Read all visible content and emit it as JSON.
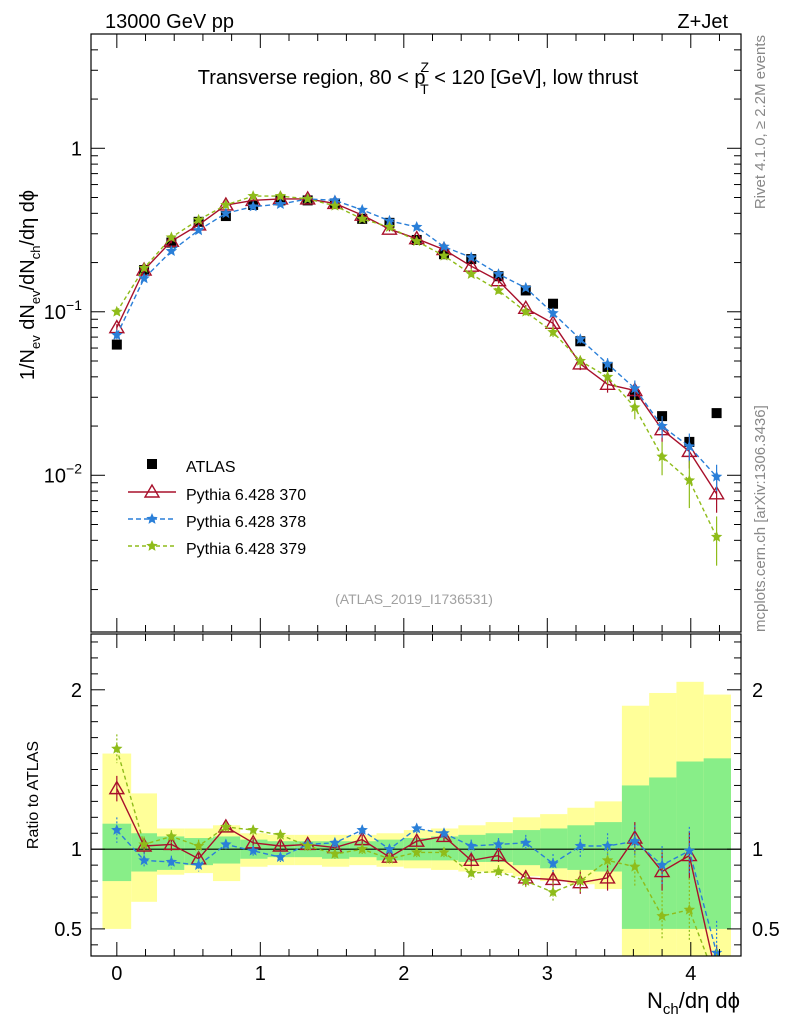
{
  "header": {
    "energy_label": "13000 GeV pp",
    "process_label": "Z+Jet",
    "side_rivet": "Rivet 4.1.0, ≥ 2.2M events",
    "side_mcplots": "mcplots.cern.ch [arXiv:1306.3436]"
  },
  "chart_data": [
    {
      "type": "scatter",
      "title": "Transverse region, 80 < p",
      "title_sup": "Z",
      "title_sub": "T",
      "title_tail": " < 120 [GeV], low thrust",
      "watermark": "(ATLAS_2019_I1736531)",
      "ylabel": {
        "a": "1/N",
        "b": "ev",
        "c": " dN",
        "d": "ev",
        "e": "/dN",
        "f": "ch",
        "g": "/dη dϕ"
      },
      "yscale": "log",
      "ylim": [
        0.0011,
        5.0
      ],
      "xlim": [
        -0.18,
        4.35
      ],
      "yticks": [
        {
          "v": 1,
          "b": "1",
          "e": ""
        },
        {
          "v": 0.1,
          "b": "10",
          "e": "−1"
        },
        {
          "v": 0.01,
          "b": "10",
          "e": "−2"
        }
      ],
      "x": [
        0.0,
        0.19,
        0.38,
        0.57,
        0.76,
        0.95,
        1.14,
        1.33,
        1.52,
        1.71,
        1.9,
        2.09,
        2.28,
        2.47,
        2.66,
        2.85,
        3.04,
        3.23,
        3.42,
        3.61,
        3.8,
        3.99,
        4.18
      ],
      "series": [
        {
          "name": "ATLAS",
          "color": "#000000",
          "marker": "square",
          "values": [
            0.063,
            0.18,
            0.265,
            0.355,
            0.385,
            0.45,
            0.48,
            0.48,
            0.46,
            0.37,
            0.35,
            0.275,
            0.225,
            0.21,
            0.165,
            0.135,
            0.112,
            0.066,
            0.046,
            0.031,
            0.023,
            0.016,
            0.024
          ]
        },
        {
          "name": "Pythia 6.428 370",
          "color": "#a8102b",
          "marker": "triangle",
          "dash": "",
          "values": [
            0.08,
            0.18,
            0.27,
            0.34,
            0.45,
            0.48,
            0.49,
            0.49,
            0.46,
            0.39,
            0.32,
            0.28,
            0.24,
            0.19,
            0.155,
            0.105,
            0.085,
            0.048,
            0.036,
            0.033,
            0.019,
            0.014,
            0.0077
          ],
          "err": [
            0.004,
            0.006,
            0.008,
            0.01,
            0.012,
            0.012,
            0.012,
            0.012,
            0.012,
            0.01,
            0.01,
            0.008,
            0.008,
            0.007,
            0.006,
            0.005,
            0.005,
            0.004,
            0.004,
            0.004,
            0.003,
            0.003,
            0.0018
          ]
        },
        {
          "name": "Pythia 6.428 378",
          "color": "#2a7fd8",
          "marker": "star",
          "dash": "5,3",
          "values": [
            0.072,
            0.16,
            0.235,
            0.315,
            0.4,
            0.44,
            0.455,
            0.49,
            0.48,
            0.42,
            0.36,
            0.33,
            0.25,
            0.215,
            0.17,
            0.14,
            0.098,
            0.068,
            0.048,
            0.034,
            0.02,
            0.015,
            0.0098
          ],
          "err": [
            0.004,
            0.006,
            0.008,
            0.01,
            0.012,
            0.012,
            0.012,
            0.012,
            0.012,
            0.01,
            0.01,
            0.008,
            0.008,
            0.007,
            0.006,
            0.005,
            0.005,
            0.004,
            0.004,
            0.004,
            0.003,
            0.003,
            0.0018
          ]
        },
        {
          "name": "Pythia 6.428 379",
          "color": "#8fbc1a",
          "marker": "star",
          "dash": "4,3",
          "values": [
            0.1,
            0.185,
            0.285,
            0.365,
            0.45,
            0.51,
            0.51,
            0.49,
            0.445,
            0.37,
            0.33,
            0.27,
            0.22,
            0.17,
            0.135,
            0.1,
            0.075,
            0.05,
            0.04,
            0.026,
            0.013,
            0.0093,
            0.0042
          ],
          "err": [
            0.004,
            0.006,
            0.008,
            0.01,
            0.012,
            0.012,
            0.012,
            0.012,
            0.012,
            0.01,
            0.01,
            0.008,
            0.008,
            0.007,
            0.006,
            0.005,
            0.005,
            0.004,
            0.004,
            0.004,
            0.003,
            0.003,
            0.0014
          ]
        }
      ]
    },
    {
      "type": "line",
      "ylabel": "Ratio to ATLAS",
      "xlabel": {
        "a": "N",
        "b": "ch",
        "c": "/dη dϕ"
      },
      "ylim": [
        0.33,
        2.35
      ],
      "xlim": [
        -0.18,
        4.35
      ],
      "xticks": [
        0,
        1,
        2,
        3,
        4
      ],
      "yticks": [
        0.5,
        1,
        2
      ],
      "reference": 1,
      "bin_edges": [
        -0.1,
        0.1,
        0.28,
        0.47,
        0.67,
        0.86,
        1.05,
        1.24,
        1.43,
        1.62,
        1.81,
        2.0,
        2.19,
        2.38,
        2.57,
        2.76,
        2.95,
        3.14,
        3.33,
        3.52,
        3.71,
        3.9,
        4.09,
        4.28
      ],
      "band_inner": [
        [
          0.8,
          1.16
        ],
        [
          0.86,
          1.1
        ],
        [
          0.87,
          1.08
        ],
        [
          0.9,
          1.07
        ],
        [
          0.91,
          1.08
        ],
        [
          0.94,
          1.06
        ],
        [
          0.95,
          1.05
        ],
        [
          0.95,
          1.05
        ],
        [
          0.94,
          1.05
        ],
        [
          0.95,
          1.05
        ],
        [
          0.93,
          1.06
        ],
        [
          0.93,
          1.07
        ],
        [
          0.93,
          1.08
        ],
        [
          0.92,
          1.09
        ],
        [
          0.92,
          1.1
        ],
        [
          0.9,
          1.12
        ],
        [
          0.88,
          1.13
        ],
        [
          0.87,
          1.15
        ],
        [
          0.86,
          1.17
        ],
        [
          0.5,
          1.4
        ],
        [
          0.5,
          1.45
        ],
        [
          0.5,
          1.55
        ],
        [
          0.5,
          1.57
        ]
      ],
      "band_outer": [
        [
          0.5,
          1.6
        ],
        [
          0.67,
          1.35
        ],
        [
          0.84,
          1.13
        ],
        [
          0.85,
          1.13
        ],
        [
          0.8,
          1.15
        ],
        [
          0.89,
          1.1
        ],
        [
          0.9,
          1.09
        ],
        [
          0.9,
          1.09
        ],
        [
          0.89,
          1.09
        ],
        [
          0.9,
          1.09
        ],
        [
          0.89,
          1.1
        ],
        [
          0.88,
          1.12
        ],
        [
          0.87,
          1.13
        ],
        [
          0.86,
          1.15
        ],
        [
          0.85,
          1.17
        ],
        [
          0.83,
          1.2
        ],
        [
          0.8,
          1.22
        ],
        [
          0.78,
          1.26
        ],
        [
          0.75,
          1.3
        ],
        [
          0.3,
          1.9
        ],
        [
          0.3,
          1.98
        ],
        [
          0.3,
          2.05
        ],
        [
          0.3,
          1.97
        ]
      ],
      "series": [
        {
          "name": "Pythia 6.428 370",
          "color": "#a8102b",
          "marker": "triangle",
          "dash": "",
          "values": [
            1.38,
            1.02,
            1.03,
            0.94,
            1.14,
            1.04,
            1.02,
            1.03,
            1.01,
            1.06,
            0.95,
            1.05,
            1.08,
            0.93,
            0.96,
            0.82,
            0.81,
            0.79,
            0.82,
            1.07,
            0.86,
            0.96,
            0.2
          ],
          "err": [
            0.08,
            0.05,
            0.04,
            0.04,
            0.03,
            0.03,
            0.03,
            0.03,
            0.03,
            0.03,
            0.03,
            0.03,
            0.03,
            0.04,
            0.04,
            0.05,
            0.06,
            0.07,
            0.08,
            0.1,
            0.12,
            0.15,
            0.2
          ]
        },
        {
          "name": "Pythia 6.428 378",
          "color": "#2a7fd8",
          "marker": "star",
          "dash": "5,3",
          "values": [
            1.12,
            0.93,
            0.92,
            0.9,
            1.03,
            0.99,
            0.95,
            1.03,
            1.04,
            1.12,
            1.0,
            1.13,
            1.1,
            1.02,
            1.03,
            1.04,
            0.91,
            1.02,
            1.02,
            1.05,
            0.9,
            0.99,
            0.35
          ],
          "err": [
            0.08,
            0.05,
            0.04,
            0.04,
            0.03,
            0.03,
            0.03,
            0.03,
            0.03,
            0.03,
            0.03,
            0.03,
            0.03,
            0.04,
            0.04,
            0.05,
            0.06,
            0.07,
            0.08,
            0.1,
            0.12,
            0.15,
            0.2
          ]
        },
        {
          "name": "Pythia 6.428 379",
          "color": "#8fbc1a",
          "marker": "star",
          "dash": "4,3",
          "values": [
            1.63,
            1.03,
            1.08,
            1.02,
            1.14,
            1.12,
            1.09,
            1.02,
            0.97,
            1.0,
            0.94,
            0.98,
            0.98,
            0.85,
            0.86,
            0.8,
            0.73,
            0.8,
            0.93,
            0.89,
            0.58,
            0.62,
            0.17
          ],
          "err": [
            0.09,
            0.05,
            0.04,
            0.04,
            0.03,
            0.03,
            0.03,
            0.03,
            0.03,
            0.03,
            0.03,
            0.03,
            0.03,
            0.04,
            0.04,
            0.05,
            0.06,
            0.07,
            0.08,
            0.12,
            0.15,
            0.2,
            0.2
          ]
        }
      ]
    }
  ]
}
